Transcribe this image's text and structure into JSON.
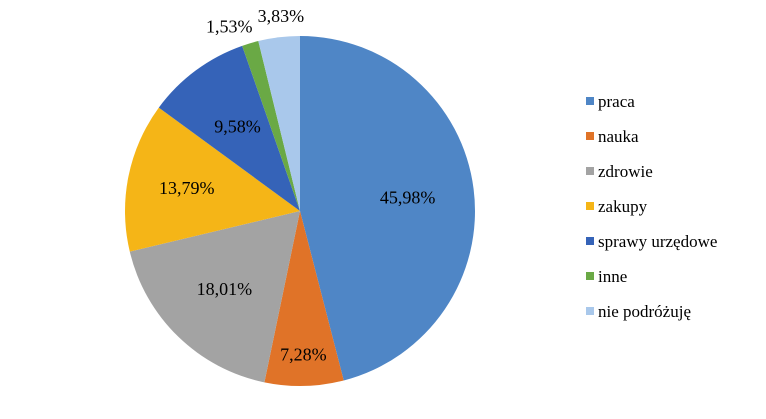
{
  "chart_data": {
    "type": "pie",
    "title": "",
    "legend_position": "right",
    "series": [
      {
        "name": "praca",
        "value": 45.98,
        "label": "45,98%",
        "color": "#4f86c6"
      },
      {
        "name": "nauka",
        "value": 7.28,
        "label": "7,28%",
        "color": "#e07328"
      },
      {
        "name": "zdrowie",
        "value": 18.01,
        "label": "18,01%",
        "color": "#a3a3a3"
      },
      {
        "name": "zakupy",
        "value": 13.79,
        "label": "13,79%",
        "color": "#f5b517"
      },
      {
        "name": "sprawy urzędowe",
        "value": 9.58,
        "label": "9,58%",
        "color": "#3563b8"
      },
      {
        "name": "inne",
        "value": 1.53,
        "label": "1,53%",
        "color": "#6aa945"
      },
      {
        "name": "nie podróżuję",
        "value": 3.83,
        "label": "3,83%",
        "color": "#a9c8eb"
      }
    ]
  }
}
